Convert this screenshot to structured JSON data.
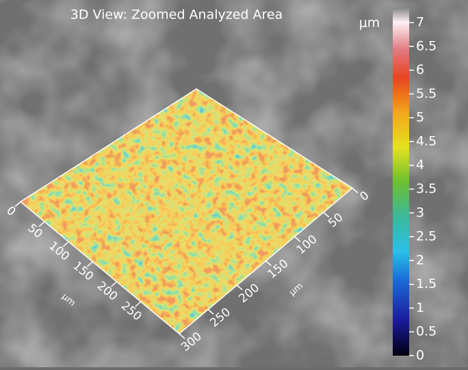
{
  "title": "3D View: Zoomed Analyzed Area",
  "colorbar": {
    "unit": "µm",
    "ticks": [
      0,
      0.5,
      1,
      1.5,
      2,
      2.5,
      3,
      3.5,
      4,
      4.5,
      5,
      5.5,
      6,
      6.5,
      7
    ]
  },
  "left_axis": {
    "label": "µm",
    "ticks": [
      0,
      50,
      100,
      150,
      200,
      250
    ]
  },
  "right_axis": {
    "label": "µm",
    "ticks": [
      0,
      50,
      100,
      150,
      200,
      250,
      300
    ]
  }
}
